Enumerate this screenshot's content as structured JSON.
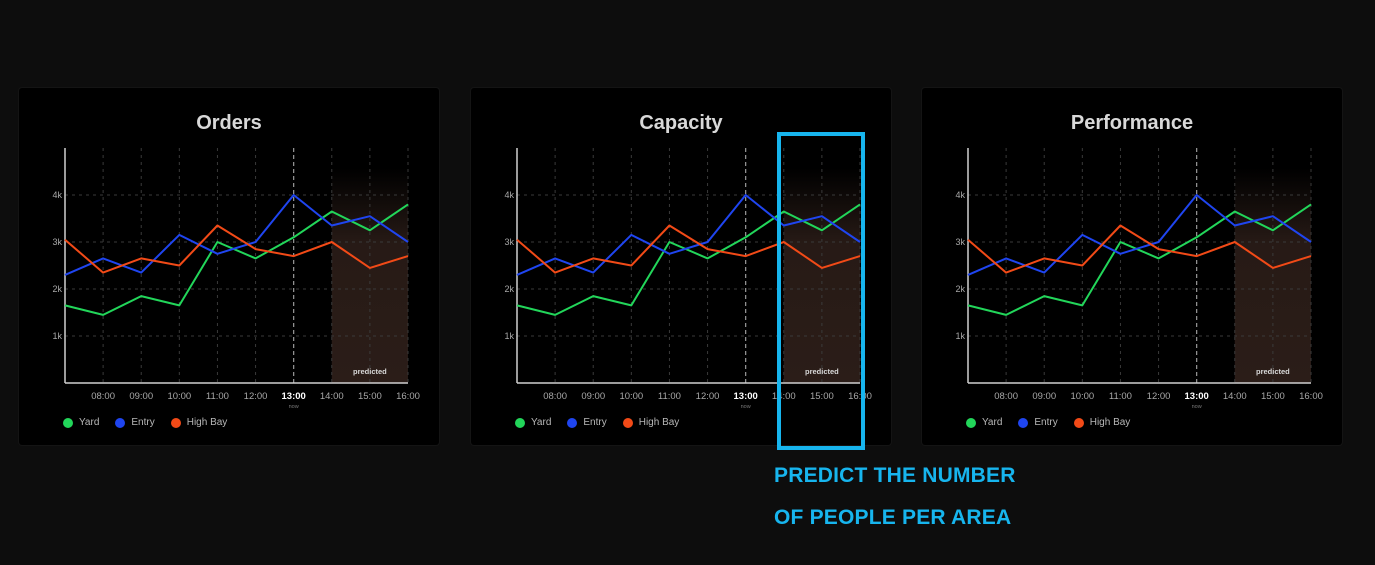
{
  "colors": {
    "Yard": "#22d65a",
    "Entry": "#1f45f0",
    "High Bay": "#f24a17",
    "highlight": "#17b5ee"
  },
  "chart_data": [
    {
      "type": "line",
      "title": "Orders",
      "x": [
        "07:00",
        "08:00",
        "09:00",
        "10:00",
        "11:00",
        "12:00",
        "13:00",
        "14:00",
        "15:00",
        "16:00"
      ],
      "tick_labels": [
        "08:00",
        "09:00",
        "10:00",
        "11:00",
        "12:00",
        "13:00",
        "14:00",
        "15:00",
        "16:00"
      ],
      "now_label": "now",
      "now_time": "13:00",
      "predicted_from": "14:00",
      "predicted_label": "predicted",
      "ylim": [
        0,
        5000
      ],
      "yticks": [
        1000,
        2000,
        3000,
        4000
      ],
      "ytick_labels": [
        "1k",
        "2k",
        "3k",
        "4k"
      ],
      "series": [
        {
          "name": "Yard",
          "values": [
            1650,
            1450,
            1850,
            1650,
            3000,
            2650,
            3100,
            3650,
            3250,
            3800
          ]
        },
        {
          "name": "Entry",
          "values": [
            2300,
            2650,
            2350,
            3150,
            2750,
            3000,
            4000,
            3350,
            3550,
            3000
          ]
        },
        {
          "name": "High Bay",
          "values": [
            3050,
            2350,
            2650,
            2500,
            3350,
            2850,
            2700,
            3000,
            2450,
            2700
          ]
        }
      ],
      "legend": [
        "Yard",
        "Entry",
        "High Bay"
      ],
      "grid": true
    },
    {
      "type": "line",
      "title": "Capacity",
      "x": [
        "07:00",
        "08:00",
        "09:00",
        "10:00",
        "11:00",
        "12:00",
        "13:00",
        "14:00",
        "15:00",
        "16:00"
      ],
      "tick_labels": [
        "08:00",
        "09:00",
        "10:00",
        "11:00",
        "12:00",
        "13:00",
        "14:00",
        "15:00",
        "16:00"
      ],
      "now_label": "now",
      "now_time": "13:00",
      "predicted_from": "14:00",
      "predicted_label": "predicted",
      "ylim": [
        0,
        5000
      ],
      "yticks": [
        1000,
        2000,
        3000,
        4000
      ],
      "ytick_labels": [
        "1k",
        "2k",
        "3k",
        "4k"
      ],
      "series": [
        {
          "name": "Yard",
          "values": [
            1650,
            1450,
            1850,
            1650,
            3000,
            2650,
            3100,
            3650,
            3250,
            3800
          ]
        },
        {
          "name": "Entry",
          "values": [
            2300,
            2650,
            2350,
            3150,
            2750,
            3000,
            4000,
            3350,
            3550,
            3000
          ]
        },
        {
          "name": "High Bay",
          "values": [
            3050,
            2350,
            2650,
            2500,
            3350,
            2850,
            2700,
            3000,
            2450,
            2700
          ]
        }
      ],
      "legend": [
        "Yard",
        "Entry",
        "High Bay"
      ],
      "grid": true
    },
    {
      "type": "line",
      "title": "Performance",
      "x": [
        "07:00",
        "08:00",
        "09:00",
        "10:00",
        "11:00",
        "12:00",
        "13:00",
        "14:00",
        "15:00",
        "16:00"
      ],
      "tick_labels": [
        "08:00",
        "09:00",
        "10:00",
        "11:00",
        "12:00",
        "13:00",
        "14:00",
        "15:00",
        "16:00"
      ],
      "now_label": "now",
      "now_time": "13:00",
      "predicted_from": "14:00",
      "predicted_label": "predicted",
      "ylim": [
        0,
        5000
      ],
      "yticks": [
        1000,
        2000,
        3000,
        4000
      ],
      "ytick_labels": [
        "1k",
        "2k",
        "3k",
        "4k"
      ],
      "series": [
        {
          "name": "Yard",
          "values": [
            1650,
            1450,
            1850,
            1650,
            3000,
            2650,
            3100,
            3650,
            3250,
            3800
          ]
        },
        {
          "name": "Entry",
          "values": [
            2300,
            2650,
            2350,
            3150,
            2750,
            3000,
            4000,
            3350,
            3550,
            3000
          ]
        },
        {
          "name": "High Bay",
          "values": [
            3050,
            2350,
            2650,
            2500,
            3350,
            2850,
            2700,
            3000,
            2450,
            2700
          ]
        }
      ],
      "legend": [
        "Yard",
        "Entry",
        "High Bay"
      ],
      "grid": true
    }
  ],
  "annotation": {
    "line1": "PREDICT THE NUMBER",
    "line2": "OF PEOPLE PER AREA"
  }
}
